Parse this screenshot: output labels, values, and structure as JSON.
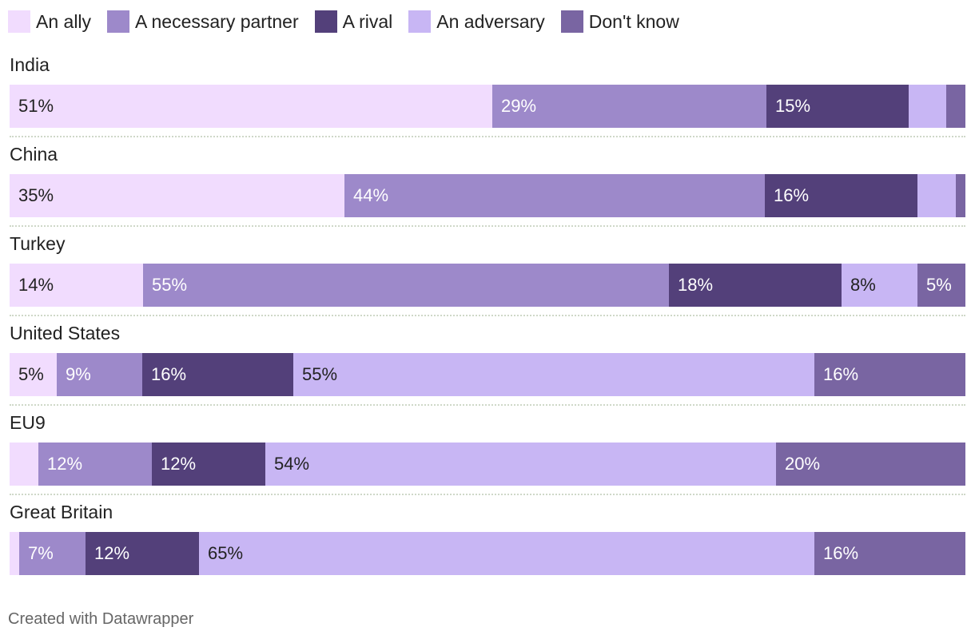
{
  "chart_data": {
    "type": "bar",
    "orientation": "horizontal",
    "stacked": true,
    "title": "",
    "xlabel": "",
    "ylabel": "",
    "xlim": [
      0,
      100
    ],
    "legend_position": "top-left",
    "grid": false,
    "categories": [
      "India",
      "China",
      "Turkey",
      "United States",
      "EU9",
      "Great Britain"
    ],
    "series": [
      {
        "name": "An ally",
        "color": "#f1dcfe",
        "values": [
          51,
          35,
          14,
          5,
          3,
          1
        ],
        "labels": [
          "51%",
          "35%",
          "14%",
          "5%",
          "",
          ""
        ]
      },
      {
        "name": "A necessary partner",
        "color": "#9d89ca",
        "values": [
          29,
          44,
          55,
          9,
          12,
          7
        ],
        "labels": [
          "29%",
          "44%",
          "55%",
          "9%",
          "12%",
          "7%"
        ]
      },
      {
        "name": "A rival",
        "color": "#53407a",
        "values": [
          15,
          16,
          18,
          16,
          12,
          12
        ],
        "labels": [
          "15%",
          "16%",
          "18%",
          "16%",
          "12%",
          "12%"
        ]
      },
      {
        "name": "An adversary",
        "color": "#c8b6f4",
        "values": [
          4,
          4,
          8,
          55,
          54,
          65
        ],
        "labels": [
          "",
          "",
          "8%",
          "55%",
          "54%",
          "65%"
        ]
      },
      {
        "name": "Don't know",
        "color": "#7965a2",
        "values": [
          2,
          1,
          5,
          16,
          20,
          16
        ],
        "labels": [
          "",
          "",
          "5%",
          "16%",
          "20%",
          "16%"
        ]
      }
    ],
    "label_colors": [
      "#222222",
      "#ffffff",
      "#ffffff",
      "#222222",
      "#ffffff"
    ]
  },
  "footer": {
    "credit": "Created with Datawrapper"
  }
}
